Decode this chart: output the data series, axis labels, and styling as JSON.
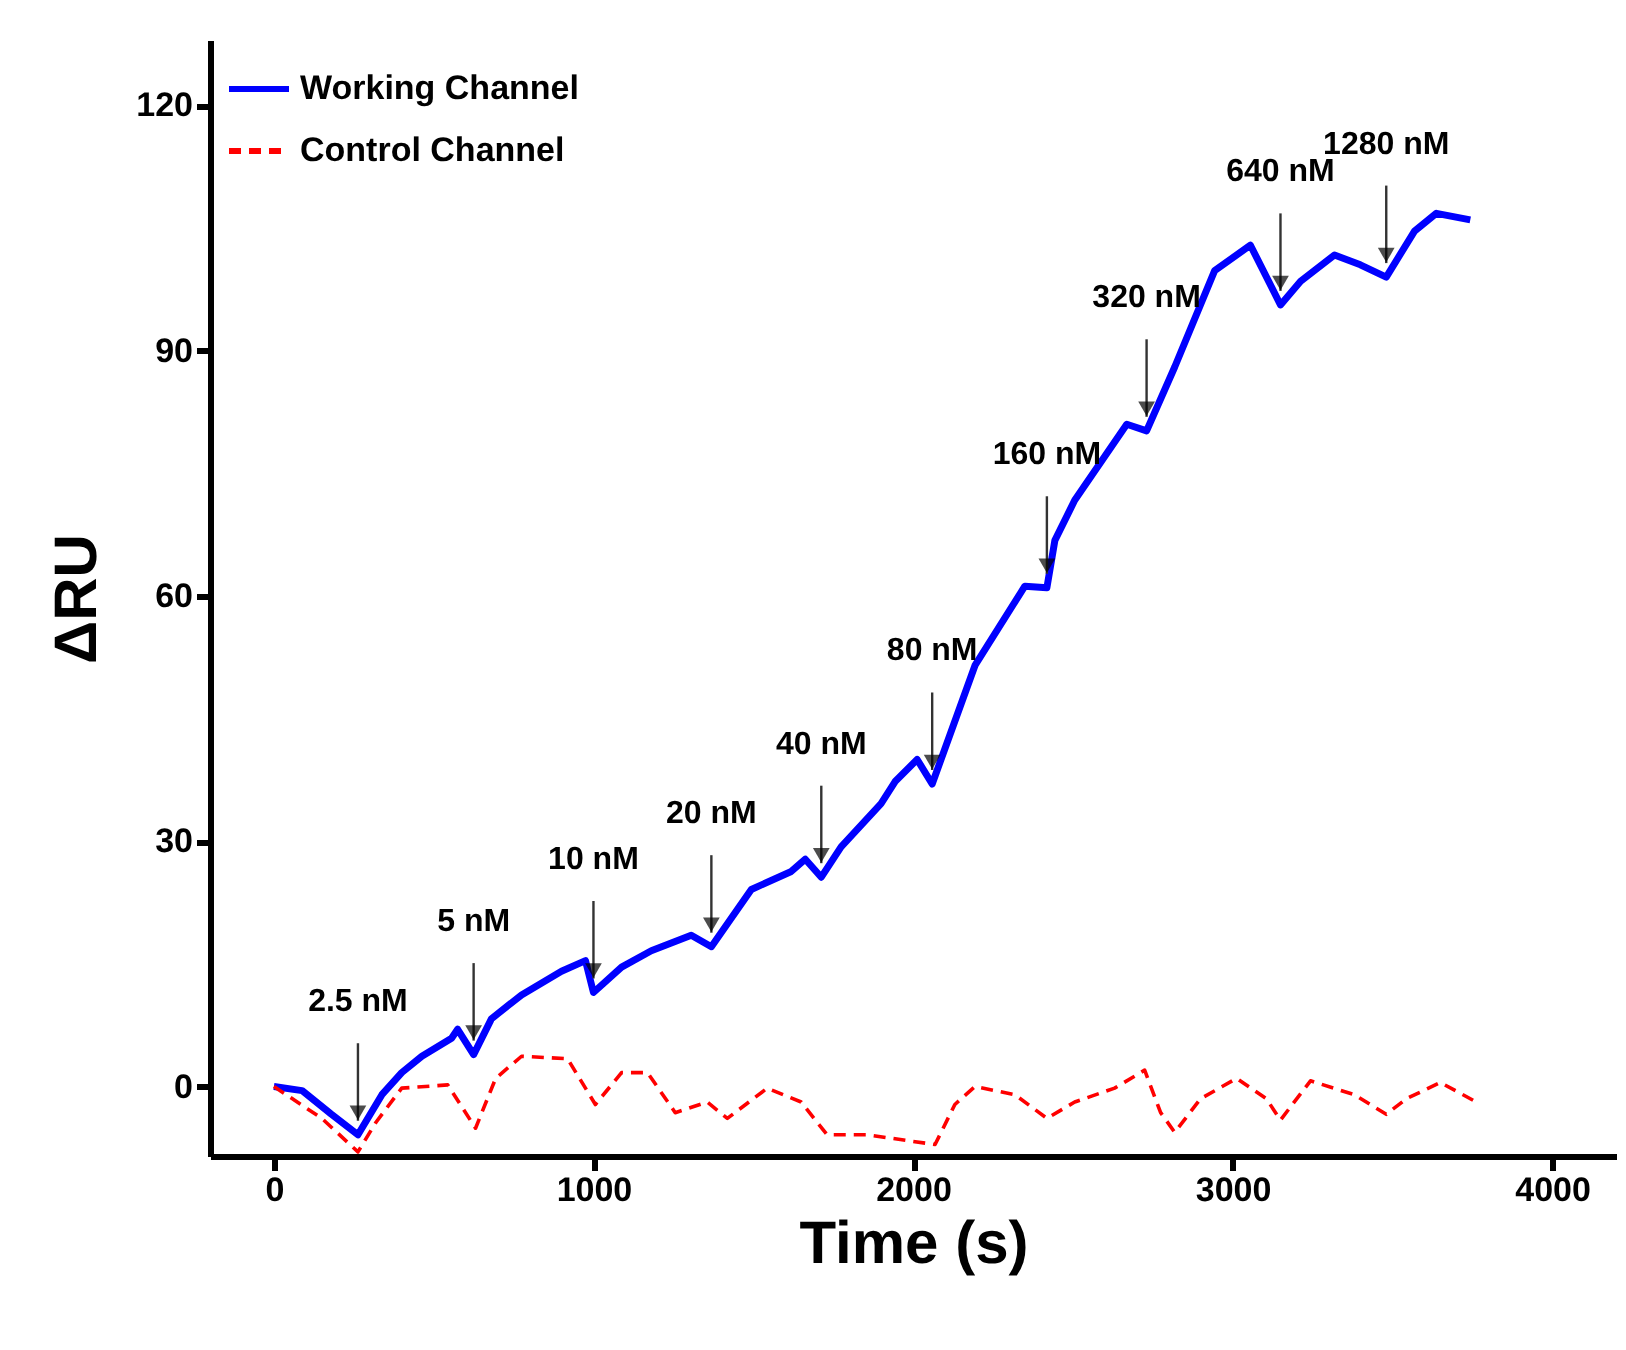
{
  "chart_data": {
    "type": "line",
    "xlabel": "Time (s)",
    "ylabel": "ΔRU",
    "xlim": [
      -200,
      4200
    ],
    "ylim": [
      -8.5,
      128
    ],
    "xticks": [
      0,
      1000,
      2000,
      3000,
      4000
    ],
    "yticks": [
      0,
      30,
      60,
      90,
      120
    ],
    "legend": "top left",
    "series": [
      {
        "name": "Working Channel",
        "color": "#0000ff",
        "line_style": "solid",
        "x": [
          0,
          88,
          180,
          263,
          338,
          400,
          463,
          556,
          575,
          625,
          681,
          775,
          900,
          975,
          1000,
          1088,
          1181,
          1306,
          1369,
          1494,
          1619,
          1663,
          1713,
          1775,
          1900,
          1944,
          2013,
          2060,
          2194,
          2350,
          2419,
          2444,
          2506,
          2669,
          2731,
          2819,
          2944,
          3056,
          3150,
          3213,
          3319,
          3400,
          3481,
          3569,
          3638,
          3744
        ],
        "values": [
          0,
          -0.5,
          -3.4,
          -5.9,
          -1,
          1.7,
          3.7,
          5.9,
          7,
          3.9,
          8.3,
          11.2,
          14.1,
          15.4,
          11.5,
          14.6,
          16.6,
          18.5,
          17.1,
          24.1,
          26.3,
          27.8,
          25.6,
          29.3,
          34.6,
          37.3,
          40,
          37,
          51.5,
          61.2,
          61,
          66.8,
          71.7,
          81,
          80.2,
          88,
          99.8,
          102.9,
          95.6,
          98.5,
          101.7,
          100.5,
          99,
          104.6,
          106.8,
          106
        ]
      },
      {
        "name": "Control Channel",
        "color": "#ff0000",
        "line_style": "dashed",
        "x": [
          0,
          150,
          263,
          319,
          400,
          544,
          631,
          694,
          775,
          919,
          1006,
          1088,
          1169,
          1256,
          1356,
          1419,
          1544,
          1650,
          1731,
          1856,
          2069,
          2131,
          2194,
          2319,
          2419,
          2506,
          2631,
          2725,
          2775,
          2819,
          2900,
          3013,
          3106,
          3150,
          3244,
          3381,
          3481,
          3544,
          3650,
          3763
        ],
        "values": [
          0,
          -3.9,
          -8,
          -4.4,
          -0.2,
          0.2,
          -5.1,
          1,
          3.7,
          3.4,
          -2.2,
          1.7,
          1.7,
          -3.2,
          -1.9,
          -3.9,
          -0.2,
          -1.9,
          -5.9,
          -5.9,
          -7.1,
          -2.2,
          0,
          -1,
          -3.9,
          -1.9,
          -0.2,
          2,
          -3.2,
          -5.6,
          -1.5,
          1,
          -1.5,
          -4.1,
          0.7,
          -1,
          -3.4,
          -1.5,
          0.5,
          -1.9
        ]
      }
    ],
    "annotations": [
      {
        "text": "2.5 nM",
        "x": 263,
        "y": -5.9
      },
      {
        "text": "5 nM",
        "x": 625,
        "y": 3.9
      },
      {
        "text": "10 nM",
        "x": 1000,
        "y": 11.5
      },
      {
        "text": "20 nM",
        "x": 1369,
        "y": 17.1
      },
      {
        "text": "40 nM",
        "x": 1713,
        "y": 25.6
      },
      {
        "text": "80 nM",
        "x": 2060,
        "y": 37
      },
      {
        "text": "160 nM",
        "x": 2419,
        "y": 61
      },
      {
        "text": "320 nM",
        "x": 2731,
        "y": 80.2
      },
      {
        "text": "640 nM",
        "x": 3150,
        "y": 95.6
      },
      {
        "text": "1280 nM",
        "x": 3481,
        "y": 99
      }
    ]
  }
}
